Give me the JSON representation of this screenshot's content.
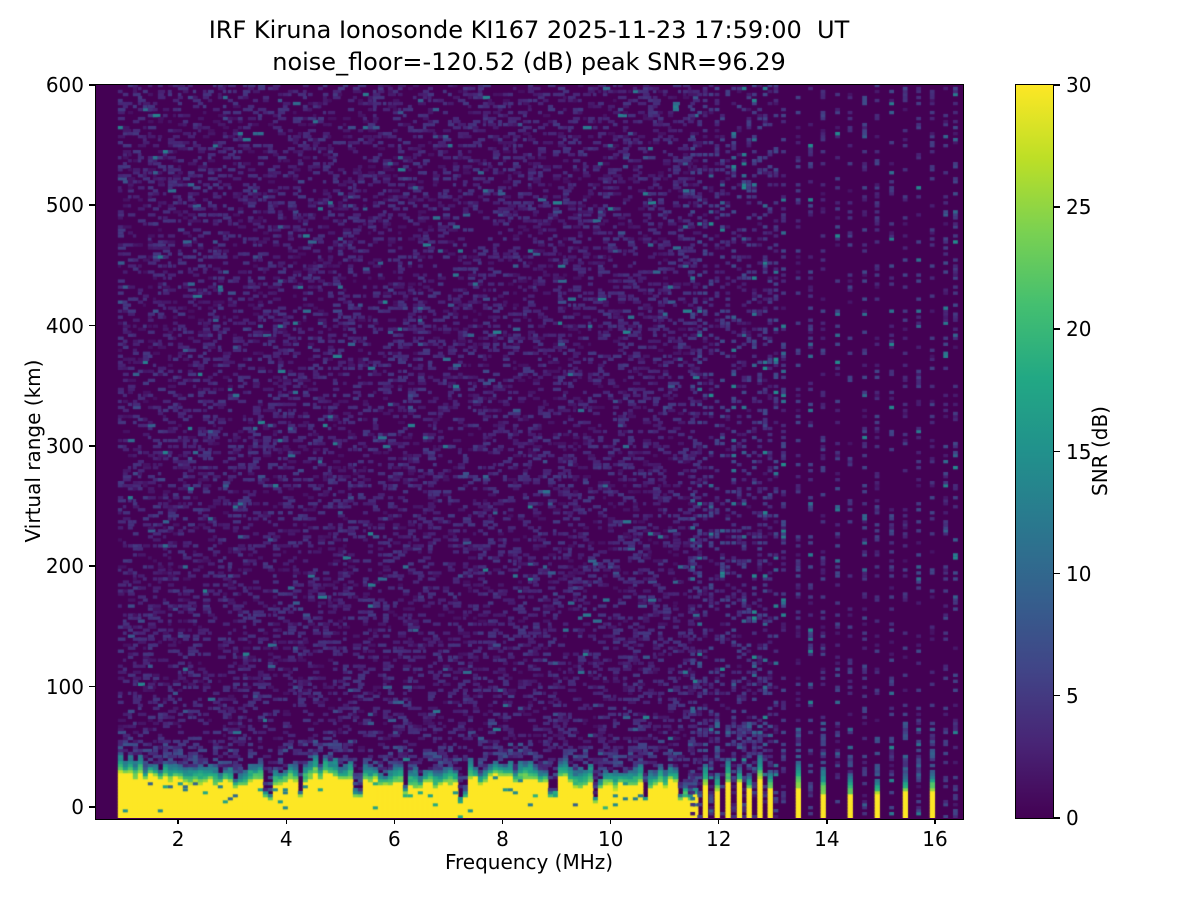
{
  "chart_data": {
    "type": "heatmap",
    "title": "IRF Kiruna Ionosonde KI167 2025-11-23 17:59:00  UT",
    "subtitle": "noise_floor=-120.52 (dB) peak SNR=96.29",
    "station": "IRF Kiruna Ionosonde KI167",
    "timestamp_ut": "2025-11-23 17:59:00",
    "noise_floor_db": -120.52,
    "peak_snr_db": 96.29,
    "xlabel": "Frequency (MHz)",
    "ylabel": "Virtual range (km)",
    "colorbar_label": "SNR (dB)",
    "xlim": [
      0.48,
      16.5
    ],
    "ylim": [
      -9,
      600
    ],
    "clim": [
      0,
      30
    ],
    "xticks": [
      2,
      4,
      6,
      8,
      10,
      12,
      14,
      16
    ],
    "yticks": [
      0,
      100,
      200,
      300,
      400,
      500,
      600
    ],
    "colorbar_ticks": [
      0,
      5,
      10,
      15,
      20,
      25,
      30
    ],
    "grid": false,
    "legend": "colorbar-right",
    "colormap": "viridis",
    "background_color": "#ffffff",
    "colormap_stops": [
      {
        "t": 0.0,
        "c": "#440154"
      },
      {
        "t": 0.1,
        "c": "#482475"
      },
      {
        "t": 0.2,
        "c": "#414487"
      },
      {
        "t": 0.3,
        "c": "#355f8d"
      },
      {
        "t": 0.4,
        "c": "#2a788e"
      },
      {
        "t": 0.5,
        "c": "#21918c"
      },
      {
        "t": 0.6,
        "c": "#22a884"
      },
      {
        "t": 0.7,
        "c": "#44bf70"
      },
      {
        "t": 0.8,
        "c": "#7ad151"
      },
      {
        "t": 0.9,
        "c": "#bddf26"
      },
      {
        "t": 1.0,
        "c": "#fde725"
      }
    ],
    "freq_start_mhz": 0.93,
    "freq_continuous_end_mhz": 11.57,
    "freq_step_mhz": 0.0925,
    "range_step_km": 2.5,
    "ground_clutter": {
      "top_km_mean": 22,
      "top_km_jitter": 8,
      "teal_thickness_km": 12,
      "speckle_zone_km": 16,
      "notch_freqs_mhz": [
        3.68,
        4.28,
        5.3,
        6.22,
        7.25,
        8.94,
        9.73,
        10.66,
        11.35,
        11.5
      ]
    },
    "clutter_stripe_freqs_mhz": [
      11.75,
      11.97,
      12.17,
      12.38,
      12.56,
      12.76,
      12.95,
      13.47,
      13.93,
      14.43,
      14.93,
      15.45,
      15.95
    ],
    "sparse_noise_columns_mhz": [
      11.52,
      11.65,
      11.86,
      12.07,
      12.28,
      12.47,
      12.66,
      12.86,
      13.06,
      13.2,
      13.7,
      14.2,
      14.7,
      15.2,
      15.7,
      16.2,
      16.38
    ],
    "noise": {
      "density": 0.32,
      "bright_fraction": 0.015
    },
    "render_seed": 167
  }
}
